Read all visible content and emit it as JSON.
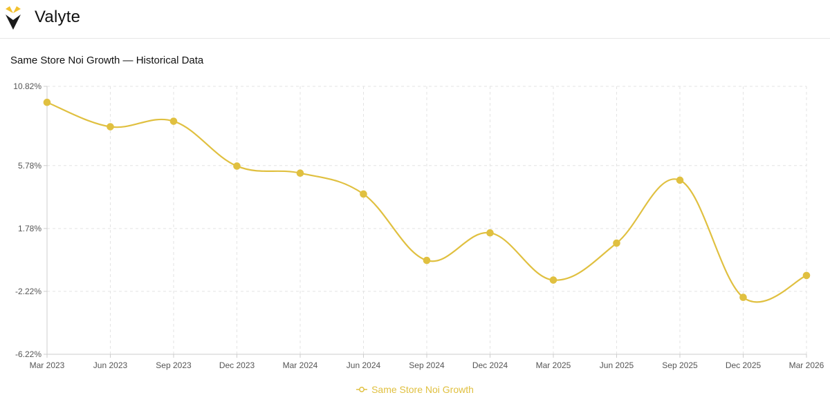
{
  "brand": {
    "name": "Valyte",
    "logo": "valyte-logo-icon"
  },
  "colors": {
    "series": "#E0C040",
    "grid": "#e3e3e3",
    "axis": "#cccccc",
    "tick_text": "#555555",
    "logo_yellow": "#F2C12E",
    "logo_dark": "#1a1a1a"
  },
  "chart_data": {
    "type": "line",
    "title": "Same Store Noi Growth — Historical Data",
    "x": [
      "Mar 2023",
      "Jun 2023",
      "Sep 2023",
      "Dec 2023",
      "Mar 2024",
      "Jun 2024",
      "Sep 2024",
      "Dec 2024",
      "Mar 2025",
      "Jun 2025",
      "Sep 2025",
      "Dec 2025",
      "Mar 2026"
    ],
    "series": [
      {
        "name": "Same Store Noi Growth",
        "values": [
          9.8,
          8.25,
          8.6,
          5.75,
          5.3,
          3.97,
          -0.25,
          1.5,
          -1.5,
          0.85,
          4.85,
          -2.6,
          -1.21
        ]
      }
    ],
    "ylim": [
      -6.22,
      10.82
    ],
    "yticks": [
      "10.82%",
      "5.78%",
      "1.78%",
      "-2.22%",
      "-6.22%"
    ],
    "ytick_values": [
      10.82,
      5.78,
      1.78,
      -2.22,
      -6.22
    ],
    "grid": true,
    "legend_position": "bottom-center",
    "curve": "smooth"
  }
}
